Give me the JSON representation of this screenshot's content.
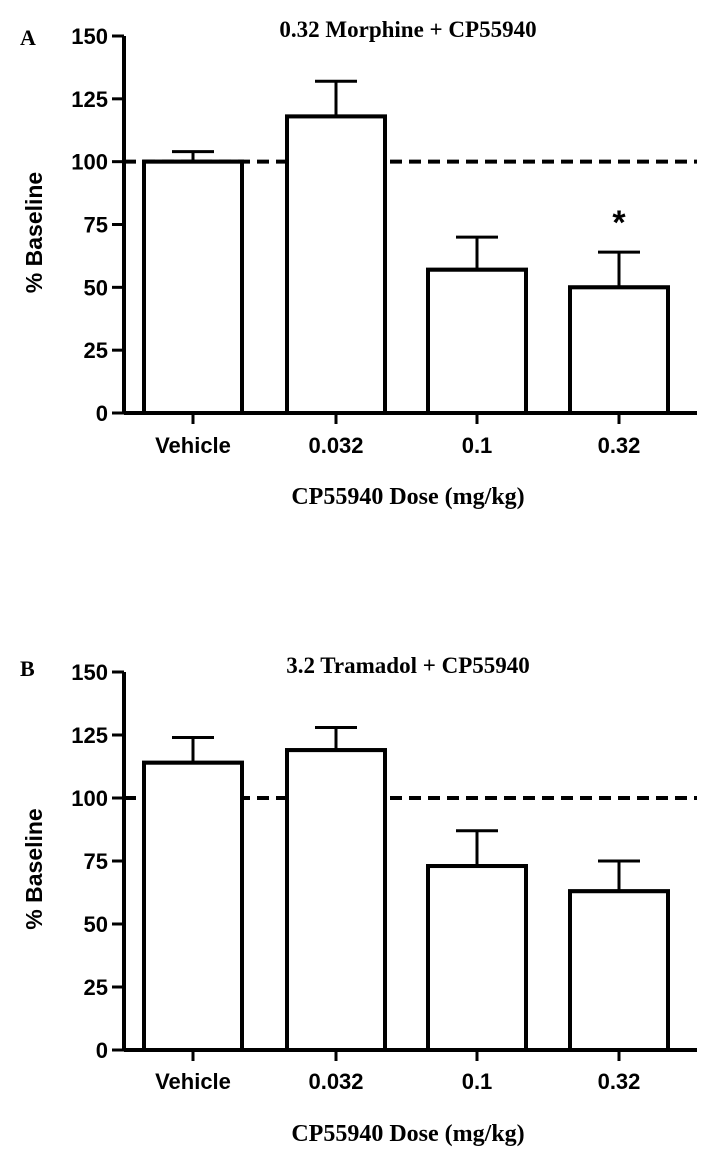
{
  "chart_data": [
    {
      "type": "bar",
      "panel": "A",
      "title": "0.32 Morphine + CP55940",
      "xlabel": "CP55940 Dose (mg/kg)",
      "ylabel": "% Baseline",
      "ylim": [
        0,
        150
      ],
      "yticks": [
        "0",
        "25",
        "50",
        "75",
        "100",
        "125",
        "150"
      ],
      "categories": [
        "Vehicle",
        "0.032",
        "0.1",
        "0.32"
      ],
      "values": [
        100,
        118,
        57,
        50
      ],
      "errors": [
        4,
        14,
        13,
        14
      ],
      "reference_line": 100,
      "annotations": [
        {
          "category": "0.32",
          "text": "*"
        }
      ]
    },
    {
      "type": "bar",
      "panel": "B",
      "title": "3.2 Tramadol + CP55940",
      "xlabel": "CP55940 Dose (mg/kg)",
      "ylabel": "% Baseline",
      "ylim": [
        0,
        150
      ],
      "yticks": [
        "0",
        "25",
        "50",
        "75",
        "100",
        "125",
        "150"
      ],
      "categories": [
        "Vehicle",
        "0.032",
        "0.1",
        "0.32"
      ],
      "values": [
        114,
        119,
        73,
        63
      ],
      "errors": [
        10,
        9,
        14,
        12
      ],
      "reference_line": 100,
      "annotations": []
    }
  ]
}
